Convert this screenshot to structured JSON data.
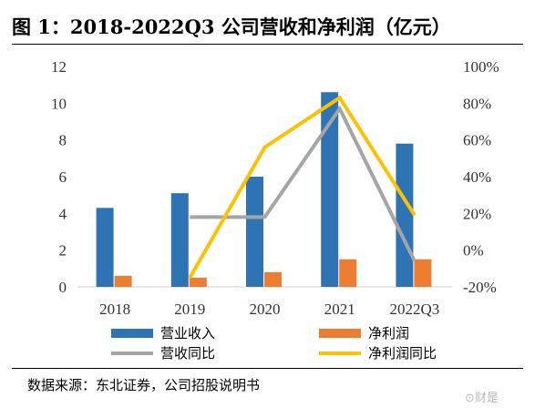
{
  "figure": {
    "title": "图 1：2018-2022Q3 公司营收和净利润（亿元）",
    "source": "数据来源：东北证券，公司招股说明书",
    "watermark": "⊙财是"
  },
  "chart_data": {
    "type": "bar",
    "categories": [
      "2018",
      "2019",
      "2020",
      "2021",
      "2022Q3"
    ],
    "series": [
      {
        "name": "营业收入",
        "kind": "bar",
        "axis": "left",
        "color": "#2e74b5",
        "values": [
          4.3,
          5.1,
          6.0,
          10.6,
          7.8
        ]
      },
      {
        "name": "净利润",
        "kind": "bar",
        "axis": "left",
        "color": "#ed7d31",
        "values": [
          0.6,
          0.5,
          0.8,
          1.5,
          1.5
        ]
      },
      {
        "name": "营收同比",
        "kind": "line",
        "axis": "right",
        "color": "#a5a5a5",
        "values": [
          null,
          0.18,
          0.18,
          0.77,
          -0.06
        ]
      },
      {
        "name": "净利润同比",
        "kind": "line",
        "axis": "right",
        "color": "#ffc000",
        "values": [
          null,
          -0.15,
          0.56,
          0.83,
          0.19
        ]
      }
    ],
    "left_axis": {
      "ylim": [
        0,
        12
      ],
      "ticks": [
        "0",
        "2",
        "4",
        "6",
        "8",
        "10",
        "12"
      ],
      "tick_values": [
        0,
        2,
        4,
        6,
        8,
        10,
        12
      ]
    },
    "right_axis": {
      "ylim": [
        -0.2,
        1.0
      ],
      "ticks": [
        "-20%",
        "0%",
        "20%",
        "40%",
        "60%",
        "80%",
        "100%"
      ],
      "tick_values": [
        -0.2,
        0,
        0.2,
        0.4,
        0.6,
        0.8,
        1.0
      ]
    },
    "grid": false,
    "legend": "bottom"
  }
}
